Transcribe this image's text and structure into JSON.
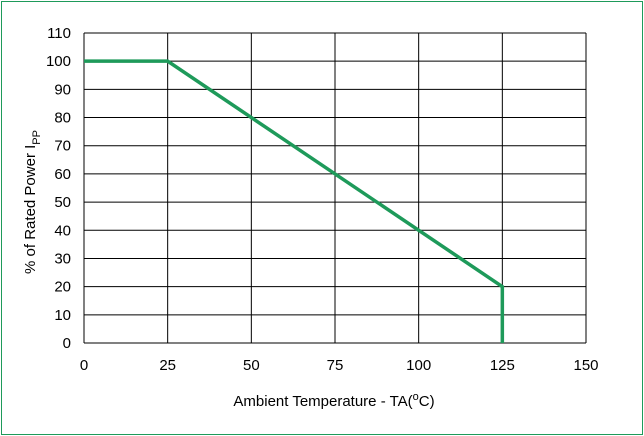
{
  "chart_data": {
    "type": "line",
    "xlabel_main": "Ambient Temperature - T",
    "xlabel_sub": "A",
    "xlabel_paren_open": "(",
    "xlabel_sup": "o",
    "xlabel_unit": "C)",
    "ylabel_main": "% of Rated Power  I",
    "ylabel_sub": "PP",
    "xlim": [
      0,
      150
    ],
    "ylim": [
      0,
      110
    ],
    "xticks": [
      0,
      25,
      50,
      75,
      100,
      125,
      150
    ],
    "yticks": [
      0,
      10,
      20,
      30,
      40,
      50,
      60,
      70,
      80,
      90,
      100,
      110
    ],
    "grid": true,
    "line_color": "#1e9a5a",
    "series": [
      {
        "x": [
          0,
          25,
          125,
          125
        ],
        "y": [
          100,
          100,
          20,
          0
        ]
      }
    ]
  }
}
